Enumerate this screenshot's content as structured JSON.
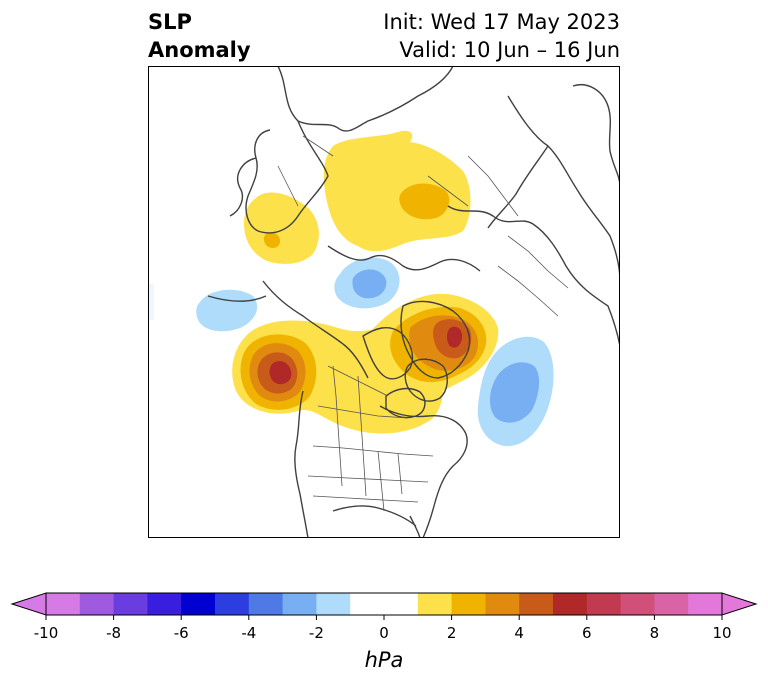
{
  "title": {
    "left_line1": "SLP",
    "left_line2": "Anomaly",
    "init": "Init: Wed 17 May 2023",
    "valid": "Valid: 10 Jun – 16 Jun"
  },
  "colorbar": {
    "unit_label": "hPa",
    "ticks": [
      "-10",
      "-8",
      "-6",
      "-4",
      "-2",
      "0",
      "2",
      "4",
      "6",
      "8",
      "10"
    ],
    "bins": [
      "#d67ae6",
      "#a05ae0",
      "#6a3de0",
      "#3a1ee0",
      "#0000d0",
      "#2c3ee0",
      "#4f7ae6",
      "#78aef2",
      "#aedcfa",
      "#ffffff",
      "#ffffff",
      "#fde14a",
      "#f0b400",
      "#e08a10",
      "#c85a1a",
      "#b02828",
      "#c23a50",
      "#d0507a",
      "#d864a6",
      "#e478da"
    ],
    "under_color": "#d67ae6",
    "over_color": "#e478da"
  },
  "map": {
    "land_outline_color": "#404040",
    "anomalies": [
      {
        "name": "scandinavia-russia-positive",
        "levels": [
          [
            "#fde14a"
          ],
          [
            "#f0b400"
          ]
        ]
      },
      {
        "name": "siberia-west-positive",
        "levels": [
          [
            "#fde14a"
          ]
        ]
      },
      {
        "name": "arctic-ocean-negative",
        "levels": [
          [
            "#aedcfa"
          ],
          [
            "#78aef2"
          ]
        ]
      },
      {
        "name": "north-pacific-negative",
        "levels": [
          [
            "#aedcfa"
          ]
        ]
      },
      {
        "name": "gulf-of-alaska-positive",
        "levels": [
          [
            "#fde14a"
          ],
          [
            "#f0b400"
          ],
          [
            "#e08a10"
          ],
          [
            "#c85a1a"
          ],
          [
            "#b02828"
          ]
        ]
      },
      {
        "name": "canada-greenland-positive",
        "levels": [
          [
            "#fde14a"
          ],
          [
            "#f0b400"
          ],
          [
            "#e08a10"
          ],
          [
            "#c85a1a"
          ],
          [
            "#b02828"
          ]
        ]
      },
      {
        "name": "north-atlantic-negative",
        "levels": [
          [
            "#aedcfa"
          ],
          [
            "#78aef2"
          ]
        ]
      }
    ]
  }
}
